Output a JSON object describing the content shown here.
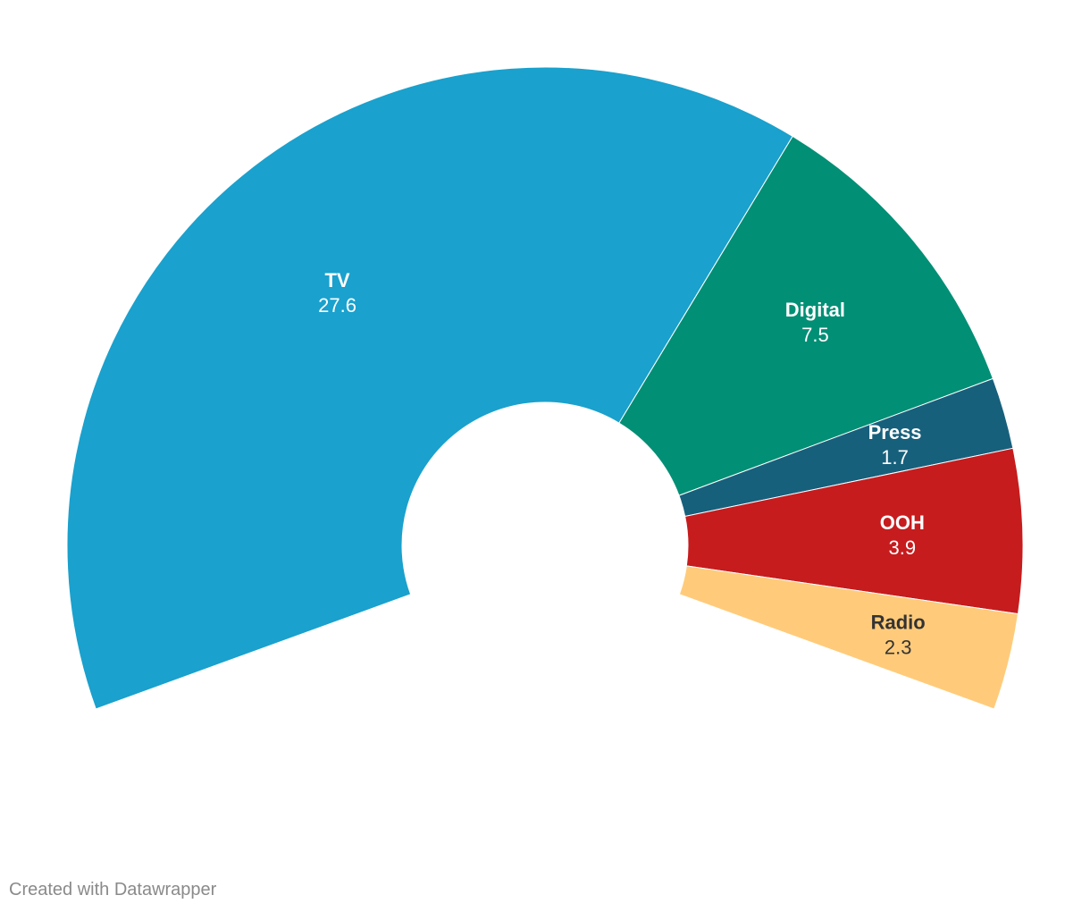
{
  "chart_data": {
    "type": "pie",
    "subtype": "semi-donut (partial ring, ~220 degrees)",
    "categories": [
      "TV",
      "Digital",
      "Press",
      "OOH",
      "Radio"
    ],
    "values": [
      27.6,
      7.5,
      1.7,
      3.9,
      2.3
    ],
    "value_labels": [
      "27.6",
      "7.5",
      "1.7",
      "3.9",
      "2.3"
    ],
    "colors": [
      "#1aa1cd",
      "#018f75",
      "#17607c",
      "#c61c1e",
      "#ffcb7a"
    ],
    "label_colors": [
      "#ffffff",
      "#ffffff",
      "#ffffff",
      "#ffffff",
      "#333333"
    ],
    "title": "",
    "legend": "none (labels on slices)"
  },
  "footer": {
    "credit": "Created with Datawrapper"
  }
}
